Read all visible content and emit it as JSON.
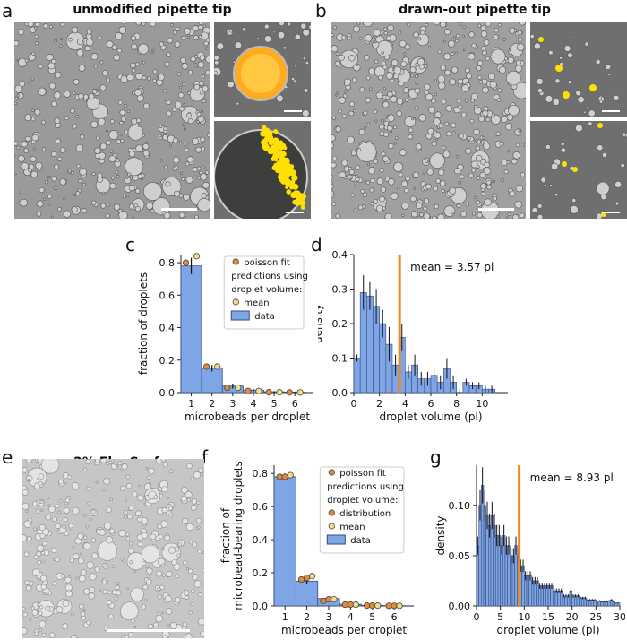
{
  "panels": {
    "a": {
      "letter": "a",
      "title": "unmodified pipette tip"
    },
    "b": {
      "letter": "b",
      "title": "drawn-out pipette tip"
    },
    "c": {
      "letter": "c"
    },
    "d": {
      "letter": "d"
    },
    "e": {
      "letter": "e",
      "title": "2% FluoSurf"
    },
    "f": {
      "letter": "f"
    },
    "g": {
      "letter": "g"
    }
  },
  "colors": {
    "bar": "#7ea6e6",
    "bar_edge": "#3a4a7a",
    "poisson": "#e08a3a",
    "mean_pred": "#f5dc8c",
    "mean_line": "#f08a1e",
    "fluor": "#ffe000"
  },
  "chart_data": [
    {
      "id": "c",
      "type": "bar",
      "categories": [
        "1",
        "2",
        "3",
        "4",
        "5",
        "6"
      ],
      "values": [
        0.78,
        0.15,
        0.04,
        0.015,
        0.005,
        0.003
      ],
      "errors": [
        0.05,
        0.02,
        0.015,
        0.008,
        0.004,
        0.003
      ],
      "poisson_fit": [
        0.8,
        0.16,
        0.03,
        0.01,
        0.002,
        0.001
      ],
      "mean_prediction": [
        0.84,
        0.16,
        0.03,
        0.01,
        0.002,
        0.001
      ],
      "xlabel": "microbeads per droplet",
      "ylabel": "fraction of droplets",
      "ylim": [
        0,
        0.85
      ],
      "yticks": [
        "0.0",
        "0.2",
        "0.4",
        "0.6",
        "0.8"
      ],
      "legend": {
        "poisson": "poisson fit",
        "pred_header_1": "predictions using",
        "pred_header_2": "droplet volume:",
        "mean": "mean",
        "data": "data"
      }
    },
    {
      "id": "d",
      "type": "bar",
      "x": [
        0.25,
        0.75,
        1.25,
        1.75,
        2.25,
        2.75,
        3.25,
        3.75,
        4.25,
        4.75,
        5.25,
        5.75,
        6.25,
        6.75,
        7.25,
        7.75,
        8.25,
        8.75,
        9.25,
        9.75,
        10.25,
        10.75
      ],
      "values": [
        0.1,
        0.29,
        0.28,
        0.25,
        0.2,
        0.14,
        0.08,
        0.16,
        0.06,
        0.08,
        0.04,
        0.04,
        0.05,
        0.03,
        0.07,
        0.03,
        0.0,
        0.03,
        0.02,
        0.02,
        0.01,
        0.01
      ],
      "errors": [
        0.01,
        0.05,
        0.04,
        0.05,
        0.04,
        0.05,
        0.03,
        0.04,
        0.02,
        0.03,
        0.02,
        0.02,
        0.02,
        0.02,
        0.03,
        0.02,
        0.01,
        0.01,
        0.01,
        0.01,
        0.01,
        0.01
      ],
      "mean_value": 3.57,
      "mean_label": "mean = 3.57 pl",
      "xlabel": "droplet volume (pl)",
      "ylabel": "density",
      "xlim": [
        0,
        12
      ],
      "ylim": [
        0,
        0.4
      ],
      "xticks": [
        "0",
        "2",
        "4",
        "6",
        "8",
        "10"
      ],
      "yticks": [
        "0.0",
        "0.1",
        "0.2",
        "0.3",
        "0.4"
      ]
    },
    {
      "id": "f",
      "type": "bar",
      "categories": [
        "1",
        "2",
        "3",
        "4",
        "5",
        "6"
      ],
      "values": [
        0.78,
        0.15,
        0.045,
        0.01,
        0.004,
        0.002
      ],
      "errors": [
        0.02,
        0.02,
        0.01,
        0.005,
        0.003,
        0.002
      ],
      "poisson_fit": [
        0.78,
        0.16,
        0.03,
        0.008,
        0.002,
        0.001
      ],
      "distribution_prediction": [
        0.78,
        0.17,
        0.04,
        0.008,
        0.002,
        0.001
      ],
      "mean_prediction": [
        0.79,
        0.18,
        0.04,
        0.008,
        0.002,
        0.001
      ],
      "xlabel": "microbeads per droplet",
      "ylabel_1": "fraction of",
      "ylabel_2": "microbead-bearing droplets",
      "ylim": [
        0,
        0.85
      ],
      "yticks": [
        "0.0",
        "0.2",
        "0.4",
        "0.6",
        "0.8"
      ],
      "legend": {
        "poisson": "poisson fit",
        "pred_header_1": "predictions using",
        "pred_header_2": "droplet volume:",
        "distribution": "distribution",
        "mean": "mean",
        "data": "data"
      }
    },
    {
      "id": "g",
      "type": "bar",
      "x_bin_width": 0.5,
      "values": [
        0.06,
        0.1,
        0.12,
        0.1,
        0.09,
        0.08,
        0.09,
        0.08,
        0.07,
        0.07,
        0.06,
        0.07,
        0.06,
        0.06,
        0.05,
        0.05,
        0.06,
        0.05,
        0.04,
        0.04,
        0.03,
        0.03,
        0.03,
        0.025,
        0.025,
        0.025,
        0.02,
        0.02,
        0.02,
        0.02,
        0.02,
        0.02,
        0.015,
        0.015,
        0.015,
        0.015,
        0.01,
        0.01,
        0.01,
        0.015,
        0.01,
        0.01,
        0.01,
        0.008,
        0.008,
        0.008,
        0.006,
        0.006,
        0.006,
        0.006,
        0.005,
        0.005,
        0.004,
        0.004,
        0.004,
        0.005,
        0.006,
        0.004,
        0.003,
        0.003
      ],
      "mean_value": 8.93,
      "mean_label": "mean = 8.93 pl",
      "xlabel": "droplet volume (pl)",
      "ylabel": "density",
      "xlim": [
        0,
        30
      ],
      "ylim": [
        0,
        0.14
      ],
      "xticks": [
        "0",
        "5",
        "10",
        "15",
        "20",
        "25",
        "30"
      ],
      "yticks": [
        "0.00",
        "0.05",
        "0.10"
      ]
    }
  ]
}
